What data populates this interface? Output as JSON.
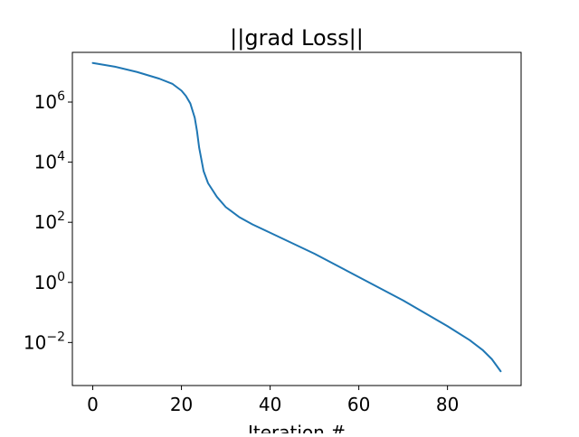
{
  "chart_data": {
    "type": "line",
    "title": "||grad Loss||",
    "xlabel": "Iteration #",
    "ylabel": "",
    "yscale": "log",
    "xlim": [
      -4.6,
      96.6
    ],
    "ylim": [
      0.00037,
      45000000
    ],
    "xticks": [
      0,
      20,
      40,
      60,
      80
    ],
    "yticks": [
      {
        "value": 0.01,
        "base": "10",
        "exp": "−2"
      },
      {
        "value": 1,
        "base": "10",
        "exp": "0"
      },
      {
        "value": 100,
        "base": "10",
        "exp": "2"
      },
      {
        "value": 10000,
        "base": "10",
        "exp": "4"
      },
      {
        "value": 1000000,
        "base": "10",
        "exp": "6"
      }
    ],
    "grid": false,
    "legend": "none",
    "series": [
      {
        "color": "#1f77b4",
        "x": [
          0,
          5,
          10,
          15,
          18,
          20,
          21,
          22,
          23,
          23.5,
          24,
          25,
          26,
          28,
          30,
          33,
          36,
          40,
          50,
          60,
          70,
          80,
          85,
          88,
          90,
          92
        ],
        "y": [
          20000000,
          15000000,
          10000000,
          6000000,
          4000000,
          2400000,
          1600000,
          900000,
          300000,
          110000,
          30000,
          5000,
          2000,
          700,
          320,
          150,
          85,
          45,
          9,
          1.5,
          0.25,
          0.035,
          0.012,
          0.0055,
          0.0028,
          0.0011
        ]
      }
    ]
  }
}
